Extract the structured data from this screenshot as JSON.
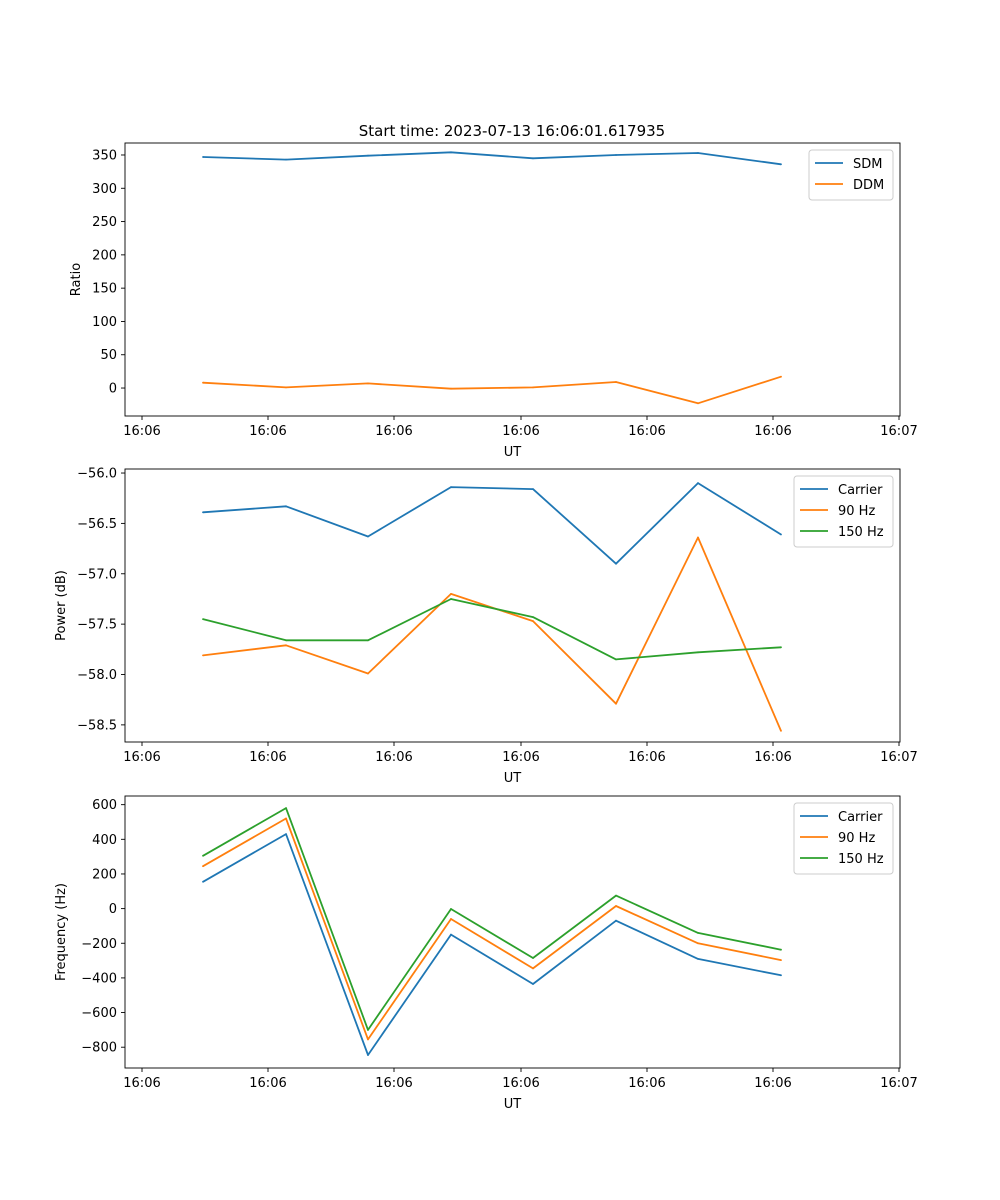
{
  "title": "Start time: 2023-07-13 16:06:01.617935",
  "colors": {
    "blue": "#1f77b4",
    "orange": "#ff7f0e",
    "green": "#2ca02c"
  },
  "chart_data": [
    {
      "type": "line",
      "xlabel": "UT",
      "ylabel": "Ratio",
      "x_tick_labels": [
        "16:06",
        "16:06",
        "16:06",
        "16:06",
        "16:06",
        "16:06",
        "16:07"
      ],
      "y_ticks": [
        0,
        50,
        100,
        150,
        200,
        250,
        300,
        350
      ],
      "ylim": [
        -42,
        368
      ],
      "legend_position": "top-right",
      "series": [
        {
          "name": "SDM",
          "color": "#1f77b4",
          "values": [
            347,
            343,
            349,
            354,
            345,
            350,
            353,
            336
          ]
        },
        {
          "name": "DDM",
          "color": "#ff7f0e",
          "values": [
            8,
            1,
            7,
            -1,
            1,
            9,
            -23,
            17
          ]
        }
      ]
    },
    {
      "type": "line",
      "xlabel": "UT",
      "ylabel": "Power (dB)",
      "x_tick_labels": [
        "16:06",
        "16:06",
        "16:06",
        "16:06",
        "16:06",
        "16:06",
        "16:07"
      ],
      "y_ticks": [
        -58.5,
        -58.0,
        -57.5,
        -57.0,
        -56.5,
        -56.0
      ],
      "y_tick_labels": [
        "−58.5",
        "−58.0",
        "−57.5",
        "−57.0",
        "−56.5",
        "−56.0"
      ],
      "ylim": [
        -58.67,
        -55.96
      ],
      "legend_position": "top-right",
      "series": [
        {
          "name": "Carrier",
          "color": "#1f77b4",
          "values": [
            -56.39,
            -56.33,
            -56.63,
            -56.14,
            -56.16,
            -56.9,
            -56.1,
            -56.61
          ]
        },
        {
          "name": "90 Hz",
          "color": "#ff7f0e",
          "values": [
            -57.81,
            -57.71,
            -57.99,
            -57.2,
            -57.47,
            -58.29,
            -56.64,
            -58.56
          ]
        },
        {
          "name": "150 Hz",
          "color": "#2ca02c",
          "values": [
            -57.45,
            -57.66,
            -57.66,
            -57.25,
            -57.43,
            -57.85,
            -57.78,
            -57.73
          ]
        }
      ]
    },
    {
      "type": "line",
      "xlabel": "UT",
      "ylabel": "Frequency (Hz)",
      "x_tick_labels": [
        "16:06",
        "16:06",
        "16:06",
        "16:06",
        "16:06",
        "16:06",
        "16:07"
      ],
      "y_ticks": [
        -800,
        -600,
        -400,
        -200,
        0,
        200,
        400,
        600
      ],
      "y_tick_labels": [
        "−800",
        "−600",
        "−400",
        "−200",
        "0",
        "200",
        "400",
        "600"
      ],
      "ylim": [
        -920,
        650
      ],
      "legend_position": "top-right",
      "series": [
        {
          "name": "Carrier",
          "color": "#1f77b4",
          "values": [
            155,
            430,
            -845,
            -150,
            -435,
            -70,
            -290,
            -385
          ]
        },
        {
          "name": "90 Hz",
          "color": "#ff7f0e",
          "values": [
            245,
            520,
            -755,
            -60,
            -345,
            15,
            -200,
            -297
          ]
        },
        {
          "name": "150 Hz",
          "color": "#2ca02c",
          "values": [
            305,
            580,
            -700,
            -2,
            -285,
            75,
            -140,
            -237
          ]
        }
      ]
    }
  ]
}
